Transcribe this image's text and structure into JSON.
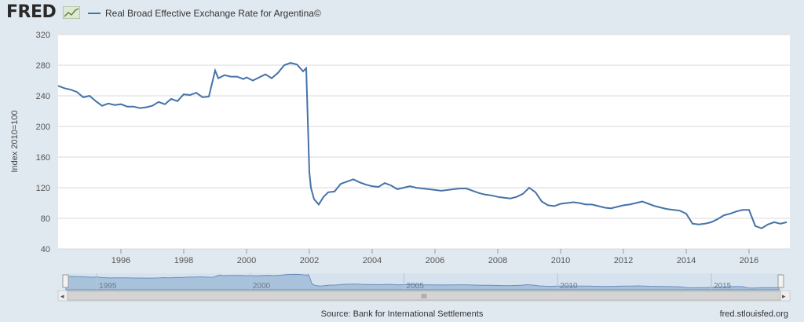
{
  "header": {
    "logo_text": "FRED",
    "legend_label": "Real Broad Effective Exchange Rate for Argentina©"
  },
  "footer": {
    "source": "Source: Bank for International Settlements",
    "credit": "fred.stlouisfed.org"
  },
  "colors": {
    "series": "#4572a7",
    "background": "#e1e9f0",
    "plot": "#ffffff",
    "grid": "#d8d8d8"
  },
  "navigator": {
    "tick_labels": [
      "1995",
      "2000",
      "2005",
      "2010",
      "2015"
    ],
    "scroll_label": "III"
  },
  "chart_data": {
    "type": "line",
    "title": "",
    "xlabel": "",
    "ylabel": "Index 2010=100",
    "ylim": [
      40,
      320
    ],
    "y_ticks": [
      40,
      80,
      120,
      160,
      200,
      240,
      280,
      320
    ],
    "x_ticks": [
      1996,
      1998,
      2000,
      2002,
      2004,
      2006,
      2008,
      2010,
      2012,
      2014,
      2016
    ],
    "grid": true,
    "legend": "top-left",
    "series": [
      {
        "name": "Real Broad Effective Exchange Rate for Argentina©",
        "x": [
          1994.0,
          1994.2,
          1994.4,
          1994.6,
          1994.8,
          1995.0,
          1995.2,
          1995.4,
          1995.6,
          1995.8,
          1996.0,
          1996.2,
          1996.4,
          1996.6,
          1996.8,
          1997.0,
          1997.2,
          1997.4,
          1997.6,
          1997.8,
          1998.0,
          1998.2,
          1998.4,
          1998.6,
          1998.8,
          1999.0,
          1999.1,
          1999.3,
          1999.5,
          1999.7,
          1999.9,
          2000.0,
          2000.2,
          2000.4,
          2000.6,
          2000.8,
          2001.0,
          2001.2,
          2001.4,
          2001.6,
          2001.8,
          2001.9,
          2002.0,
          2002.05,
          2002.15,
          2002.3,
          2002.45,
          2002.6,
          2002.8,
          2003.0,
          2003.2,
          2003.4,
          2003.6,
          2003.8,
          2004.0,
          2004.2,
          2004.4,
          2004.6,
          2004.8,
          2005.0,
          2005.2,
          2005.4,
          2005.6,
          2005.8,
          2006.0,
          2006.2,
          2006.4,
          2006.6,
          2006.8,
          2007.0,
          2007.2,
          2007.4,
          2007.6,
          2007.8,
          2008.0,
          2008.2,
          2008.4,
          2008.6,
          2008.8,
          2009.0,
          2009.2,
          2009.4,
          2009.6,
          2009.8,
          2010.0,
          2010.2,
          2010.4,
          2010.6,
          2010.8,
          2011.0,
          2011.2,
          2011.4,
          2011.6,
          2011.8,
          2012.0,
          2012.2,
          2012.4,
          2012.6,
          2012.8,
          2013.0,
          2013.2,
          2013.4,
          2013.6,
          2013.8,
          2014.0,
          2014.2,
          2014.4,
          2014.6,
          2014.8,
          2015.0,
          2015.2,
          2015.4,
          2015.6,
          2015.8,
          2016.0,
          2016.2,
          2016.4,
          2016.6,
          2016.8,
          2017.0,
          2017.2
        ],
        "y": [
          253,
          250,
          248,
          245,
          238,
          240,
          233,
          227,
          230,
          228,
          229,
          226,
          226,
          224,
          225,
          227,
          232,
          229,
          236,
          233,
          242,
          241,
          244,
          238,
          239,
          273,
          263,
          267,
          265,
          265,
          262,
          264,
          260,
          264,
          268,
          263,
          270,
          280,
          283,
          281,
          272,
          276,
          140,
          120,
          105,
          98,
          108,
          114,
          115,
          125,
          128,
          131,
          127,
          124,
          122,
          121,
          126,
          123,
          118,
          120,
          122,
          120,
          119,
          118,
          117,
          116,
          117,
          118,
          119,
          119,
          116,
          113,
          111,
          110,
          108,
          107,
          106,
          108,
          112,
          120,
          114,
          102,
          97,
          96,
          99,
          100,
          101,
          100,
          98,
          98,
          96,
          94,
          93,
          95,
          97,
          98,
          100,
          102,
          99,
          96,
          94,
          92,
          91,
          90,
          86,
          73,
          72,
          73,
          75,
          79,
          84,
          86,
          89,
          91,
          91,
          70,
          67,
          72,
          75,
          73,
          75
        ]
      }
    ]
  }
}
